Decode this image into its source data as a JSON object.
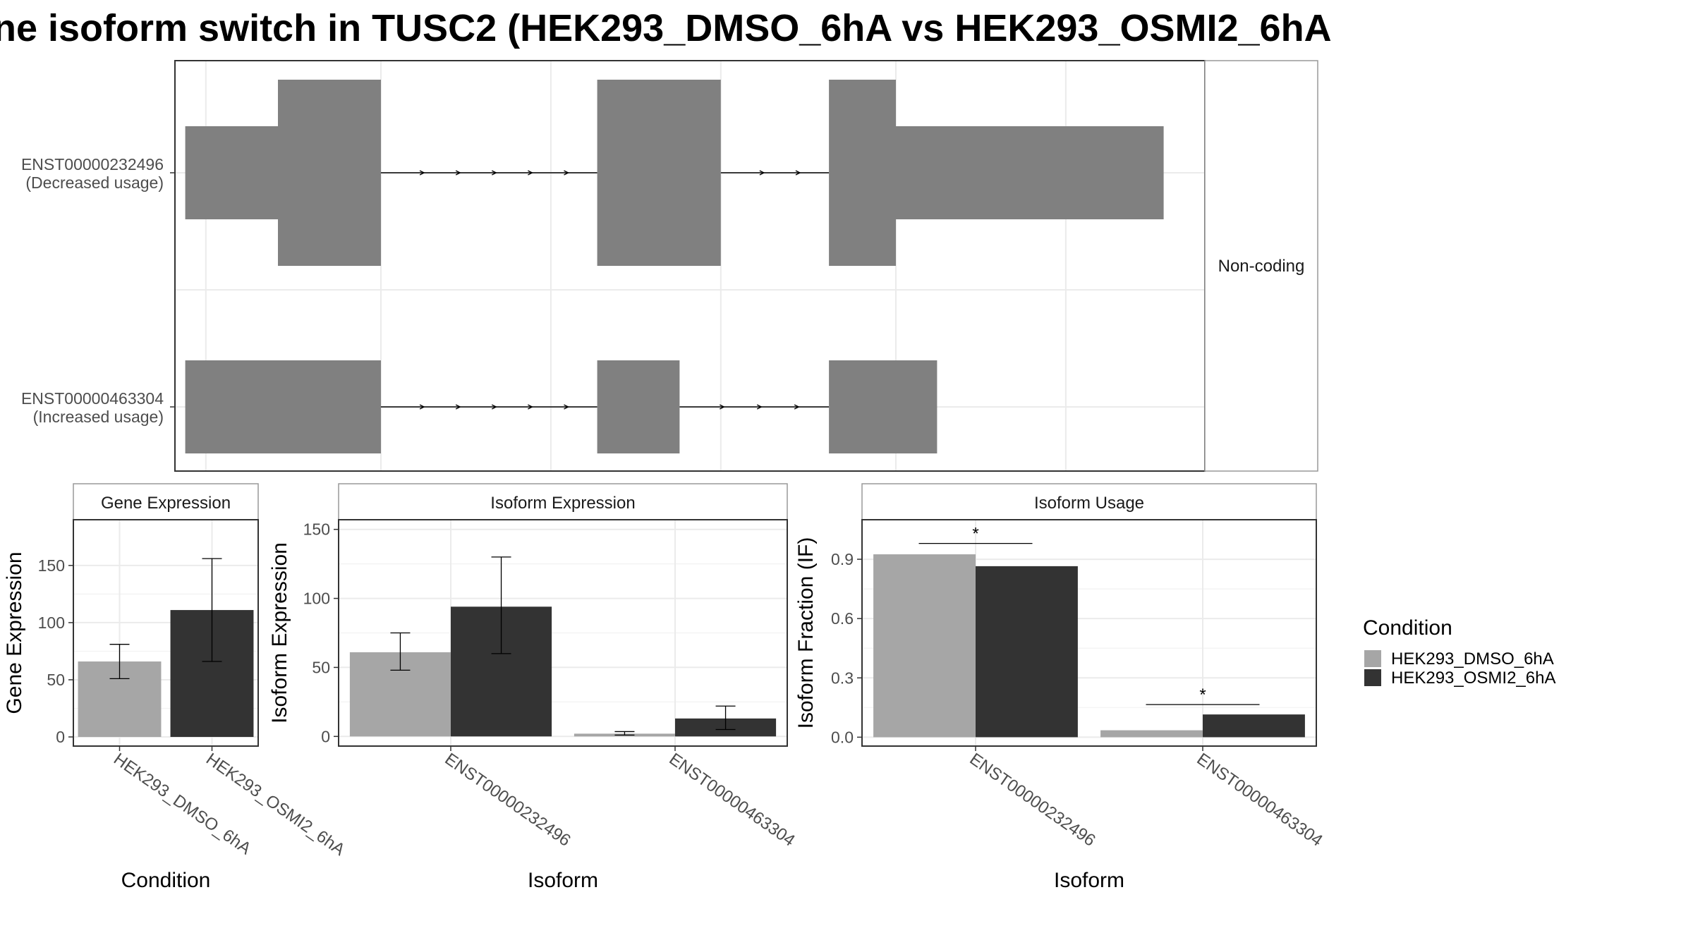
{
  "title": "ne isoform switch in TUSC2 (HEK293_DMSO_6hA vs HEK293_OSMI2_6hA",
  "colors": {
    "exon": "#808080",
    "dmso": "#A6A6A6",
    "osmi2": "#333333",
    "grid": "#EBEBEB",
    "border": "#333333",
    "strip_border": "#999999",
    "axis_text": "#4D4D4D"
  },
  "chart_data": [
    {
      "type": "gene-structure",
      "facet_label": "Non-coding",
      "x_range": [
        0,
        100
      ],
      "transcripts": [
        {
          "id": "ENST00000232496",
          "label_line1": "ENST00000232496",
          "label_line2": "(Decreased usage)",
          "exons": [
            {
              "start": 1,
              "end": 10,
              "type": "utr"
            },
            {
              "start": 10,
              "end": 20,
              "type": "cds"
            },
            {
              "start": 41,
              "end": 53,
              "type": "cds"
            },
            {
              "start": 63.5,
              "end": 70,
              "type": "cds"
            },
            {
              "start": 70,
              "end": 96,
              "type": "utr"
            }
          ]
        },
        {
          "id": "ENST00000463304",
          "label_line1": "ENST00000463304",
          "label_line2": "(Increased usage)",
          "exons": [
            {
              "start": 1,
              "end": 20,
              "type": "utr"
            },
            {
              "start": 41,
              "end": 49,
              "type": "utr"
            },
            {
              "start": 63.5,
              "end": 74,
              "type": "utr"
            }
          ]
        }
      ]
    },
    {
      "type": "bar",
      "strip_title": "Gene Expression",
      "xlabel": "Condition",
      "ylabel": "Gene Expression",
      "ylim": [
        -8,
        190
      ],
      "yticks": [
        0,
        50,
        100,
        150
      ],
      "categories": [
        "HEK293_DMSO_6hA",
        "HEK293_OSMI2_6hA"
      ],
      "values": [
        66,
        111
      ],
      "errors": [
        [
          51,
          81
        ],
        [
          66,
          156
        ]
      ]
    },
    {
      "type": "bar",
      "strip_title": "Isoform Expression",
      "xlabel": "Isoform",
      "ylabel": "Isoform Expression",
      "ylim": [
        -7,
        157
      ],
      "yticks": [
        0,
        50,
        100,
        150
      ],
      "categories": [
        "ENST00000232496",
        "ENST00000463304"
      ],
      "series": [
        {
          "name": "HEK293_DMSO_6hA",
          "values": [
            61,
            2
          ],
          "errors": [
            [
              48,
              75
            ],
            [
              1,
              3.5
            ]
          ]
        },
        {
          "name": "HEK293_OSMI2_6hA",
          "values": [
            94,
            13
          ],
          "errors": [
            [
              60,
              130
            ],
            [
              5,
              22
            ]
          ]
        }
      ]
    },
    {
      "type": "bar",
      "strip_title": "Isoform Usage",
      "xlabel": "Isoform",
      "ylabel": "Isoform Fraction (IF)",
      "ylim": [
        -0.045,
        1.1
      ],
      "yticks": [
        0.0,
        0.3,
        0.6,
        0.9
      ],
      "ytick_labels": [
        "0.0",
        "0.3",
        "0.6",
        "0.9"
      ],
      "categories": [
        "ENST00000232496",
        "ENST00000463304"
      ],
      "series": [
        {
          "name": "HEK293_DMSO_6hA",
          "values": [
            0.925,
            0.035
          ]
        },
        {
          "name": "HEK293_OSMI2_6hA",
          "values": [
            0.865,
            0.115
          ]
        }
      ],
      "significance": [
        {
          "category": 0,
          "y": 0.98,
          "label": "*"
        },
        {
          "category": 1,
          "y": 0.165,
          "label": "*"
        }
      ]
    }
  ],
  "legend": {
    "title": "Condition",
    "items": [
      "HEK293_DMSO_6hA",
      "HEK293_OSMI2_6hA"
    ],
    "placement": "right"
  }
}
